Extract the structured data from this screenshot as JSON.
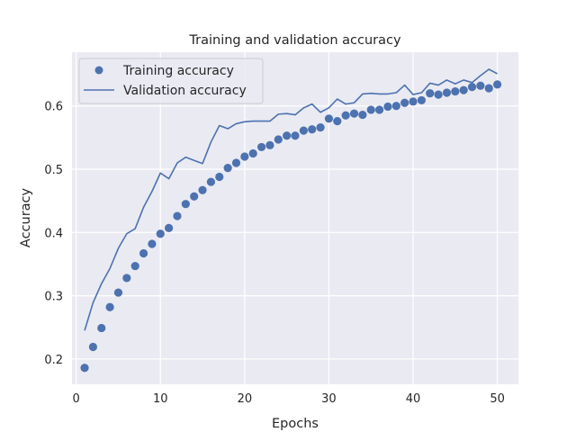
{
  "chart_data": {
    "type": "line",
    "title": "Training and validation accuracy",
    "xlabel": "Epochs",
    "ylabel": "Accuracy",
    "xlim": [
      -0.5,
      52.5
    ],
    "ylim": [
      0.16,
      0.685
    ],
    "xticks": [
      0,
      10,
      20,
      30,
      40,
      50
    ],
    "yticks": [
      0.2,
      0.3,
      0.4,
      0.5,
      0.6
    ],
    "grid": true,
    "legend": "top-left",
    "x": [
      1,
      2,
      3,
      4,
      5,
      6,
      7,
      8,
      9,
      10,
      11,
      12,
      13,
      14,
      15,
      16,
      17,
      18,
      19,
      20,
      21,
      22,
      23,
      24,
      25,
      26,
      27,
      28,
      29,
      30,
      31,
      32,
      33,
      34,
      35,
      36,
      37,
      38,
      39,
      40,
      41,
      42,
      43,
      44,
      45,
      46,
      47,
      48,
      49,
      50
    ],
    "series": [
      {
        "name": "Training accuracy",
        "style": "scatter",
        "color": "#4c72b0",
        "values": [
          0.186,
          0.219,
          0.249,
          0.282,
          0.305,
          0.328,
          0.347,
          0.367,
          0.382,
          0.398,
          0.407,
          0.426,
          0.445,
          0.457,
          0.467,
          0.48,
          0.488,
          0.502,
          0.51,
          0.52,
          0.525,
          0.535,
          0.538,
          0.547,
          0.553,
          0.553,
          0.561,
          0.563,
          0.566,
          0.58,
          0.576,
          0.585,
          0.588,
          0.586,
          0.594,
          0.594,
          0.599,
          0.6,
          0.605,
          0.607,
          0.609,
          0.62,
          0.618,
          0.621,
          0.623,
          0.625,
          0.63,
          0.632,
          0.628,
          0.634
        ]
      },
      {
        "name": "Validation accuracy",
        "style": "line",
        "color": "#4c72b0",
        "values": [
          0.245,
          0.289,
          0.319,
          0.343,
          0.375,
          0.398,
          0.406,
          0.44,
          0.465,
          0.494,
          0.485,
          0.51,
          0.519,
          0.514,
          0.509,
          0.543,
          0.569,
          0.564,
          0.572,
          0.575,
          0.576,
          0.576,
          0.576,
          0.587,
          0.588,
          0.586,
          0.597,
          0.603,
          0.59,
          0.597,
          0.611,
          0.603,
          0.605,
          0.619,
          0.62,
          0.619,
          0.619,
          0.621,
          0.633,
          0.618,
          0.621,
          0.636,
          0.633,
          0.641,
          0.635,
          0.641,
          0.637,
          0.648,
          0.658,
          0.651
        ]
      }
    ]
  }
}
